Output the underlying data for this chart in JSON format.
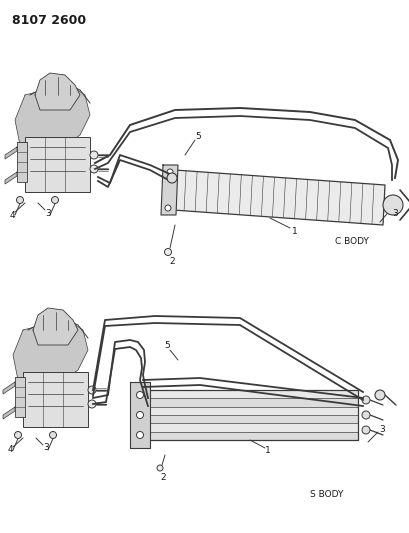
{
  "title": "8107 2600",
  "background_color": "#ffffff",
  "line_color": "#3a3a3a",
  "text_color": "#1a1a1a",
  "c_body_label": "C BODY",
  "s_body_label": "S BODY",
  "fig_width": 4.1,
  "fig_height": 5.33,
  "dpi": 100
}
